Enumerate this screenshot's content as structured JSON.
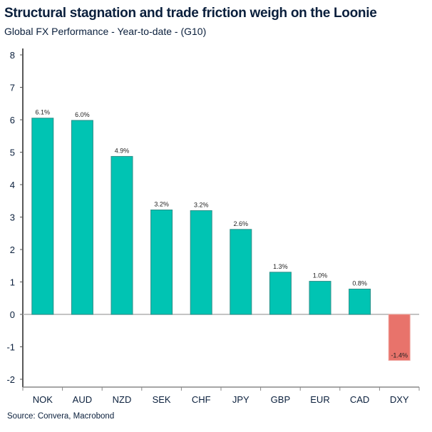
{
  "chart_data": {
    "type": "bar",
    "title": "Structural stagnation and trade friction weigh on the Loonie",
    "subtitle": "Global FX Performance - Year-to-date - (G10)",
    "source": "Source: Convera, Macrobond",
    "categories": [
      "NOK",
      "AUD",
      "NZD",
      "SEK",
      "CHF",
      "JPY",
      "GBP",
      "EUR",
      "CAD",
      "DXY"
    ],
    "values": [
      6.05,
      5.98,
      4.87,
      3.22,
      3.2,
      2.62,
      1.3,
      1.02,
      0.78,
      -1.42
    ],
    "data_labels": [
      "6.1%",
      "6.0%",
      "4.9%",
      "3.2%",
      "3.2%",
      "2.6%",
      "1.3%",
      "1.0%",
      "0.8%",
      "-1.4%"
    ],
    "ylim": [
      -2,
      8
    ],
    "yticks": [
      -2,
      -1,
      0,
      1,
      2,
      3,
      4,
      5,
      6,
      7,
      8
    ],
    "xlabel": "",
    "ylabel": "",
    "grid": false,
    "colors": {
      "positive": "#00c4b3",
      "negative": "#e8736b",
      "text": "#0a1f3c"
    }
  }
}
